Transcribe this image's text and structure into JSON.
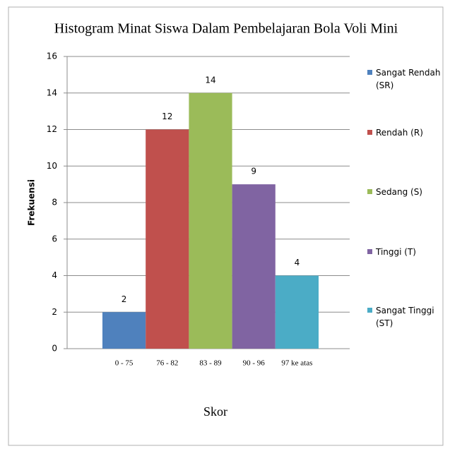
{
  "chart_data": {
    "type": "bar",
    "title": "Histogram Minat Siswa Dalam Pembelajaran Bola Voli Mini",
    "x_label": "Skor",
    "y_label": "Frekuensi",
    "categories": [
      "0 - 75",
      "76 - 82",
      "83 - 89",
      "90 - 96",
      "97 ke atas"
    ],
    "series": [
      {
        "name": "Sangat Rendah (SR)",
        "color": "#4f81bd",
        "values": [
          2,
          null,
          null,
          null,
          null
        ]
      },
      {
        "name": "Rendah (R)",
        "color": "#c0504d",
        "values": [
          null,
          12,
          null,
          null,
          null
        ]
      },
      {
        "name": "Sedang (S)",
        "color": "#9bbb59",
        "values": [
          null,
          null,
          14,
          null,
          null
        ]
      },
      {
        "name": "Tinggi (T)",
        "color": "#8064a2",
        "values": [
          null,
          null,
          null,
          9,
          null
        ]
      },
      {
        "name": "Sangat Tinggi (ST)",
        "color": "#4bacc6",
        "values": [
          null,
          null,
          null,
          null,
          4
        ]
      }
    ],
    "ylim": [
      0,
      16
    ],
    "yticks": [
      0,
      2,
      4,
      6,
      8,
      10,
      12,
      14,
      16
    ],
    "grid": true,
    "legend": "right"
  }
}
